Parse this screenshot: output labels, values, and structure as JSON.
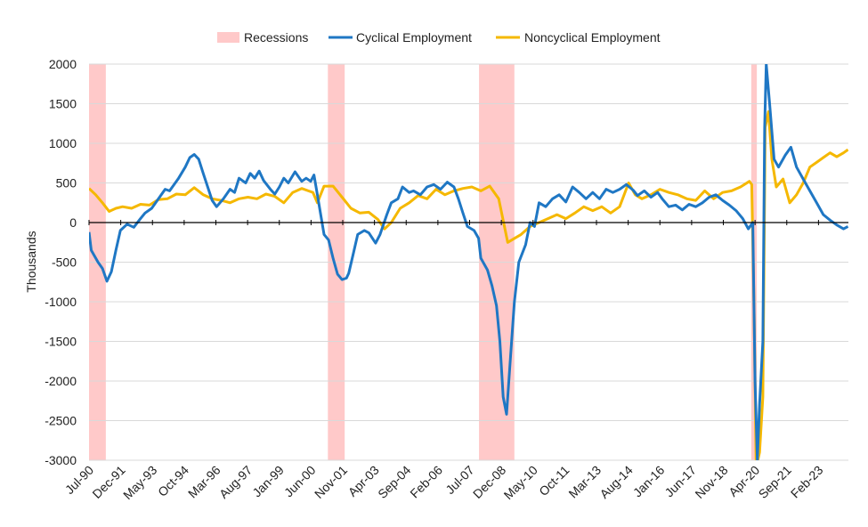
{
  "chart_data": {
    "type": "line",
    "title": "",
    "xlabel": "",
    "ylabel": "Thousands",
    "ylim": [
      -3000,
      2000
    ],
    "yticks": [
      2000,
      1500,
      1000,
      500,
      0,
      -500,
      -1000,
      -1500,
      -2000,
      -2500,
      -3000
    ],
    "grid": true,
    "legend_position": "top-center",
    "x_start": "1990-07",
    "x_end": "2024-05",
    "x_tick_labels": [
      "Jul-90",
      "Dec-91",
      "May-93",
      "Oct-94",
      "Mar-96",
      "Aug-97",
      "Jan-99",
      "Jun-00",
      "Nov-01",
      "Apr-03",
      "Sep-04",
      "Feb-06",
      "Jul-07",
      "Dec-08",
      "May-10",
      "Oct-11",
      "Mar-13",
      "Aug-14",
      "Jan-16",
      "Jun-17",
      "Nov-18",
      "Apr-20",
      "Sep-21",
      "Feb-23"
    ],
    "recessions": [
      {
        "label": "1990-91",
        "start": 1990.5,
        "end": 1991.25
      },
      {
        "label": "2001",
        "start": 2001.17,
        "end": 2001.92
      },
      {
        "label": "2007-09",
        "start": 2007.92,
        "end": 2009.5
      },
      {
        "label": "2020",
        "start": 2020.08,
        "end": 2020.33
      }
    ],
    "series": [
      {
        "name": "Cyclical Employment",
        "color": "#1f77c4",
        "points": [
          [
            1990.5,
            -120
          ],
          [
            1990.6,
            -350
          ],
          [
            1990.9,
            -500
          ],
          [
            1991.1,
            -580
          ],
          [
            1991.3,
            -740
          ],
          [
            1991.5,
            -620
          ],
          [
            1991.7,
            -350
          ],
          [
            1991.9,
            -100
          ],
          [
            1992.2,
            -20
          ],
          [
            1992.5,
            -60
          ],
          [
            1992.8,
            50
          ],
          [
            1993.0,
            120
          ],
          [
            1993.3,
            180
          ],
          [
            1993.6,
            300
          ],
          [
            1993.9,
            420
          ],
          [
            1994.1,
            400
          ],
          [
            1994.3,
            480
          ],
          [
            1994.5,
            560
          ],
          [
            1994.8,
            700
          ],
          [
            1995.0,
            820
          ],
          [
            1995.2,
            860
          ],
          [
            1995.4,
            800
          ],
          [
            1995.6,
            620
          ],
          [
            1995.8,
            450
          ],
          [
            1996.0,
            280
          ],
          [
            1996.2,
            200
          ],
          [
            1996.5,
            300
          ],
          [
            1996.8,
            420
          ],
          [
            1997.0,
            380
          ],
          [
            1997.2,
            560
          ],
          [
            1997.5,
            500
          ],
          [
            1997.7,
            620
          ],
          [
            1997.9,
            560
          ],
          [
            1998.1,
            650
          ],
          [
            1998.3,
            530
          ],
          [
            1998.6,
            420
          ],
          [
            1998.8,
            360
          ],
          [
            1999.0,
            450
          ],
          [
            1999.2,
            560
          ],
          [
            1999.4,
            500
          ],
          [
            1999.7,
            640
          ],
          [
            2000.0,
            520
          ],
          [
            2000.2,
            560
          ],
          [
            2000.4,
            520
          ],
          [
            2000.55,
            600
          ],
          [
            2000.7,
            350
          ],
          [
            2001.0,
            -150
          ],
          [
            2001.2,
            -220
          ],
          [
            2001.4,
            -450
          ],
          [
            2001.6,
            -650
          ],
          [
            2001.8,
            -720
          ],
          [
            2002.0,
            -700
          ],
          [
            2002.1,
            -640
          ],
          [
            2002.3,
            -400
          ],
          [
            2002.5,
            -150
          ],
          [
            2002.8,
            -100
          ],
          [
            2003.0,
            -130
          ],
          [
            2003.3,
            -260
          ],
          [
            2003.5,
            -150
          ],
          [
            2003.8,
            100
          ],
          [
            2004.0,
            250
          ],
          [
            2004.3,
            300
          ],
          [
            2004.5,
            450
          ],
          [
            2004.8,
            380
          ],
          [
            2005.0,
            400
          ],
          [
            2005.3,
            350
          ],
          [
            2005.6,
            450
          ],
          [
            2005.9,
            480
          ],
          [
            2006.2,
            420
          ],
          [
            2006.5,
            510
          ],
          [
            2006.8,
            450
          ],
          [
            2007.0,
            300
          ],
          [
            2007.2,
            120
          ],
          [
            2007.4,
            -50
          ],
          [
            2007.7,
            -100
          ],
          [
            2007.9,
            -200
          ],
          [
            2008.0,
            -450
          ],
          [
            2008.3,
            -600
          ],
          [
            2008.5,
            -800
          ],
          [
            2008.7,
            -1050
          ],
          [
            2008.85,
            -1500
          ],
          [
            2009.0,
            -2200
          ],
          [
            2009.15,
            -2420
          ],
          [
            2009.3,
            -1800
          ],
          [
            2009.5,
            -1000
          ],
          [
            2009.7,
            -500
          ],
          [
            2010.0,
            -280
          ],
          [
            2010.2,
            0
          ],
          [
            2010.4,
            -50
          ],
          [
            2010.6,
            250
          ],
          [
            2010.9,
            200
          ],
          [
            2011.2,
            300
          ],
          [
            2011.5,
            350
          ],
          [
            2011.8,
            260
          ],
          [
            2012.1,
            450
          ],
          [
            2012.4,
            380
          ],
          [
            2012.7,
            300
          ],
          [
            2013.0,
            380
          ],
          [
            2013.3,
            300
          ],
          [
            2013.6,
            420
          ],
          [
            2013.9,
            380
          ],
          [
            2014.2,
            420
          ],
          [
            2014.5,
            480
          ],
          [
            2014.8,
            410
          ],
          [
            2015.0,
            340
          ],
          [
            2015.3,
            400
          ],
          [
            2015.6,
            320
          ],
          [
            2015.9,
            380
          ],
          [
            2016.1,
            300
          ],
          [
            2016.4,
            200
          ],
          [
            2016.7,
            220
          ],
          [
            2017.0,
            160
          ],
          [
            2017.3,
            230
          ],
          [
            2017.6,
            200
          ],
          [
            2017.9,
            250
          ],
          [
            2018.2,
            320
          ],
          [
            2018.5,
            350
          ],
          [
            2018.8,
            280
          ],
          [
            2019.1,
            220
          ],
          [
            2019.4,
            150
          ],
          [
            2019.7,
            50
          ],
          [
            2019.95,
            -80
          ],
          [
            2020.15,
            0
          ],
          [
            2020.25,
            -2000
          ],
          [
            2020.35,
            -3000
          ],
          [
            2020.45,
            -2300
          ],
          [
            2020.6,
            -1500
          ],
          [
            2020.68,
            1200
          ],
          [
            2020.75,
            2000
          ],
          [
            2020.9,
            1500
          ],
          [
            2021.1,
            800
          ],
          [
            2021.3,
            700
          ],
          [
            2021.6,
            850
          ],
          [
            2021.85,
            950
          ],
          [
            2022.1,
            700
          ],
          [
            2022.4,
            550
          ],
          [
            2022.7,
            400
          ],
          [
            2023.0,
            250
          ],
          [
            2023.3,
            100
          ],
          [
            2023.6,
            30
          ],
          [
            2023.9,
            -30
          ],
          [
            2024.2,
            -80
          ],
          [
            2024.4,
            -50
          ]
        ]
      },
      {
        "name": "Noncyclical Employment",
        "color": "#f5b800",
        "points": [
          [
            1990.5,
            430
          ],
          [
            1990.8,
            350
          ],
          [
            1991.1,
            250
          ],
          [
            1991.4,
            140
          ],
          [
            1991.7,
            180
          ],
          [
            1992.0,
            200
          ],
          [
            1992.4,
            180
          ],
          [
            1992.8,
            230
          ],
          [
            1993.2,
            220
          ],
          [
            1993.6,
            290
          ],
          [
            1994.0,
            300
          ],
          [
            1994.4,
            360
          ],
          [
            1994.8,
            350
          ],
          [
            1995.2,
            440
          ],
          [
            1995.6,
            350
          ],
          [
            1996.0,
            300
          ],
          [
            1996.4,
            280
          ],
          [
            1996.8,
            250
          ],
          [
            1997.2,
            300
          ],
          [
            1997.6,
            320
          ],
          [
            1998.0,
            300
          ],
          [
            1998.4,
            360
          ],
          [
            1998.8,
            330
          ],
          [
            1999.2,
            250
          ],
          [
            1999.6,
            380
          ],
          [
            2000.0,
            430
          ],
          [
            2000.3,
            400
          ],
          [
            2000.5,
            380
          ],
          [
            2000.7,
            250
          ],
          [
            2001.0,
            460
          ],
          [
            2001.4,
            460
          ],
          [
            2001.8,
            320
          ],
          [
            2002.2,
            180
          ],
          [
            2002.6,
            120
          ],
          [
            2003.0,
            130
          ],
          [
            2003.4,
            40
          ],
          [
            2003.7,
            -80
          ],
          [
            2004.0,
            0
          ],
          [
            2004.4,
            180
          ],
          [
            2004.8,
            250
          ],
          [
            2005.2,
            340
          ],
          [
            2005.6,
            300
          ],
          [
            2006.0,
            420
          ],
          [
            2006.4,
            350
          ],
          [
            2006.8,
            400
          ],
          [
            2007.2,
            430
          ],
          [
            2007.6,
            450
          ],
          [
            2008.0,
            400
          ],
          [
            2008.4,
            460
          ],
          [
            2008.8,
            300
          ],
          [
            2009.2,
            -250
          ],
          [
            2009.5,
            -200
          ],
          [
            2009.8,
            -150
          ],
          [
            2010.2,
            -50
          ],
          [
            2010.6,
            0
          ],
          [
            2011.0,
            50
          ],
          [
            2011.4,
            100
          ],
          [
            2011.8,
            50
          ],
          [
            2012.2,
            120
          ],
          [
            2012.6,
            200
          ],
          [
            2013.0,
            150
          ],
          [
            2013.4,
            200
          ],
          [
            2013.8,
            120
          ],
          [
            2014.2,
            200
          ],
          [
            2014.6,
            500
          ],
          [
            2014.9,
            350
          ],
          [
            2015.2,
            300
          ],
          [
            2015.6,
            350
          ],
          [
            2016.0,
            420
          ],
          [
            2016.4,
            380
          ],
          [
            2016.8,
            350
          ],
          [
            2017.2,
            300
          ],
          [
            2017.6,
            280
          ],
          [
            2018.0,
            400
          ],
          [
            2018.4,
            300
          ],
          [
            2018.8,
            380
          ],
          [
            2019.2,
            400
          ],
          [
            2019.6,
            450
          ],
          [
            2020.0,
            520
          ],
          [
            2020.1,
            480
          ],
          [
            2020.2,
            -1000
          ],
          [
            2020.3,
            -3100
          ],
          [
            2020.45,
            -2900
          ],
          [
            2020.6,
            -2200
          ],
          [
            2020.7,
            1200
          ],
          [
            2020.85,
            1400
          ],
          [
            2021.0,
            800
          ],
          [
            2021.2,
            450
          ],
          [
            2021.5,
            550
          ],
          [
            2021.8,
            250
          ],
          [
            2022.1,
            350
          ],
          [
            2022.4,
            500
          ],
          [
            2022.7,
            700
          ],
          [
            2023.0,
            760
          ],
          [
            2023.3,
            820
          ],
          [
            2023.6,
            880
          ],
          [
            2023.9,
            830
          ],
          [
            2024.2,
            880
          ],
          [
            2024.4,
            920
          ]
        ]
      }
    ]
  },
  "legend": {
    "recessions_label": "Recessions",
    "cyclical_label": "Cyclical Employment",
    "noncyclical_label": "Noncyclical Employment"
  },
  "colors": {
    "recession": "#ffc9c9",
    "cyclical": "#1f77c4",
    "noncyclical": "#f5b800",
    "grid": "#d9d9d9",
    "zero_line": "#000000"
  }
}
